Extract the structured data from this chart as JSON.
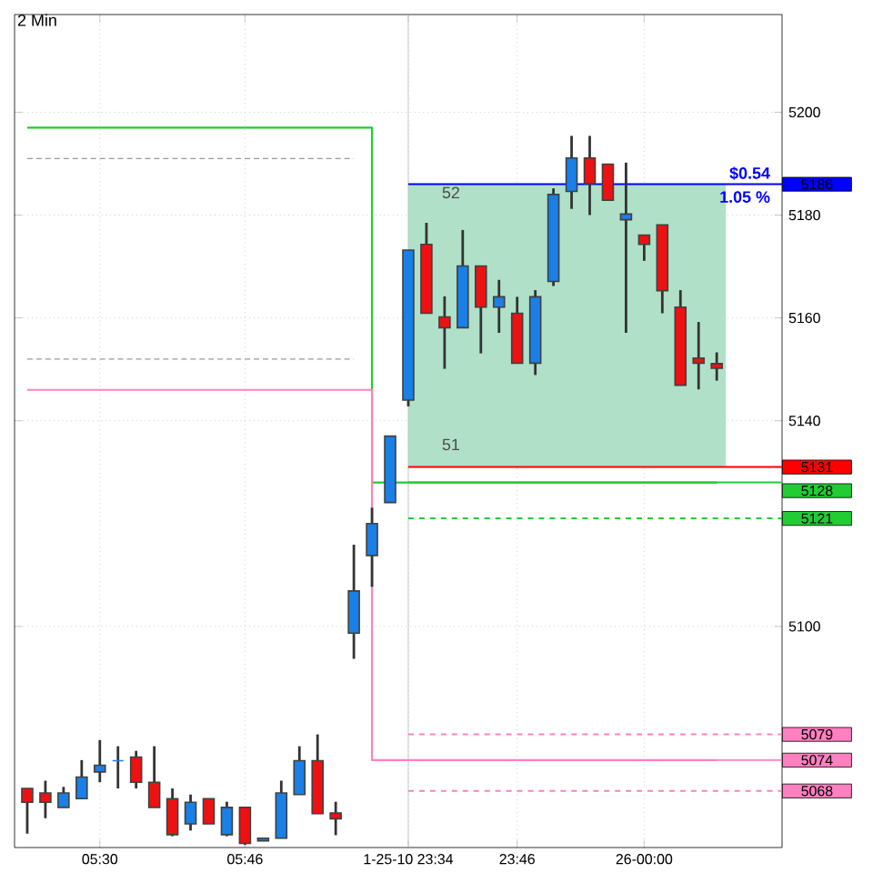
{
  "chart_data": {
    "type": "candlestick",
    "title": "2 Min",
    "categories": [
      null,
      null,
      null,
      null,
      "05:30",
      null,
      null,
      null,
      null,
      null,
      null,
      null,
      "05:46",
      null,
      null,
      null,
      null,
      null,
      null,
      null,
      null,
      "1-25-10 23:34",
      null,
      null,
      null,
      null,
      null,
      "23:46",
      null,
      null,
      null,
      null,
      null,
      null,
      "26-00:00",
      null,
      null,
      null,
      null
    ],
    "ohlc": [
      [
        5068.5,
        5068.5,
        5059.7,
        5065.8
      ],
      [
        5067.6,
        5070.0,
        5062.7,
        5065.8
      ],
      [
        5064.8,
        5068.8,
        5064.8,
        5067.6
      ],
      [
        5066.5,
        5074.0,
        5066.5,
        5070.7
      ],
      [
        5071.7,
        5077.9,
        5069.7,
        5073.0
      ],
      [
        5073.9,
        5076.7,
        5068.5,
        5073.9
      ],
      [
        5074.6,
        5075.8,
        5068.5,
        5069.7
      ],
      [
        5069.7,
        5076.7,
        5064.8,
        5064.8
      ],
      [
        5066.5,
        5068.5,
        5059.2,
        5059.5
      ],
      [
        5061.6,
        5067.3,
        5060.3,
        5065.8
      ],
      [
        5066.5,
        5066.5,
        5061.6,
        5061.6
      ],
      [
        5059.5,
        5065.9,
        5059.2,
        5064.8
      ],
      [
        5064.8,
        5064.8,
        5057.5,
        5057.8
      ],
      [
        5058.3,
        5058.8,
        5058.3,
        5058.8
      ],
      [
        5058.8,
        5070.0,
        5058.8,
        5067.6
      ],
      [
        5067.3,
        5076.7,
        5067.3,
        5073.9
      ],
      [
        5073.9,
        5079.0,
        5063.6,
        5063.6
      ],
      [
        5063.7,
        5065.9,
        5059.4,
        5062.6
      ],
      [
        5098.7,
        5115.9,
        5093.7,
        5106.9
      ],
      [
        5113.8,
        5123.1,
        5107.7,
        5120.0
      ],
      [
        5124.1,
        5137.0,
        5124.1,
        5137.0
      ],
      [
        5144.0,
        5173.2,
        5142.8,
        5173.2
      ],
      [
        5174.3,
        5178.5,
        5160.9,
        5160.9
      ],
      [
        5160.2,
        5164.2,
        5150.1,
        5158.1
      ],
      [
        5158.1,
        5177.1,
        5158.1,
        5170.1
      ],
      [
        5170.1,
        5170.1,
        5153.1,
        5162.1
      ],
      [
        5162.1,
        5167.4,
        5157.1,
        5164.1
      ],
      [
        5160.9,
        5164.1,
        5151.2,
        5151.2
      ],
      [
        5151.2,
        5165.4,
        5148.9,
        5164.1
      ],
      [
        5167.1,
        5185.2,
        5166.2,
        5184.0
      ],
      [
        5184.6,
        5195.4,
        5181.2,
        5191.1
      ],
      [
        5191.1,
        5195.4,
        5180.0,
        5186.1
      ],
      [
        5189.9,
        5189.9,
        5182.9,
        5182.9
      ],
      [
        5179.1,
        5190.2,
        5157.1,
        5180.2
      ],
      [
        5176.1,
        5176.1,
        5171.1,
        5174.3
      ],
      [
        5178.1,
        5178.1,
        5160.9,
        5165.3
      ],
      [
        5162.1,
        5165.4,
        5146.9,
        5146.9
      ],
      [
        5152.2,
        5159.2,
        5146.1,
        5151.2
      ],
      [
        5151.1,
        5153.3,
        5147.8,
        5150.2
      ]
    ],
    "colors": [
      "#ee1111",
      "#ee1111",
      "#1a7fe6",
      "#1a7fe6",
      "#1a7fe6",
      "#1a7fe6",
      "#ee1111",
      "#ee1111",
      "#ee1111",
      "#1a7fe6",
      "#ee1111",
      "#1a7fe6",
      "#ee1111",
      "#1a7fe6",
      "#1a7fe6",
      "#1a7fe6",
      "#ee1111",
      "#ee1111",
      "#1a7fe6",
      "#1a7fe6",
      "#1a7fe6",
      "#1a7fe6",
      "#ee1111",
      "#ee1111",
      "#1a7fe6",
      "#ee1111",
      "#1a7fe6",
      "#ee1111",
      "#1a7fe6",
      "#1a7fe6",
      "#1a7fe6",
      "#ee1111",
      "#ee1111",
      "#1a7fe6",
      "#ee1111",
      "#ee1111",
      "#ee1111",
      "#ee1111",
      "#ee1111"
    ],
    "series": [
      {
        "type": "step",
        "color": "#22cc33",
        "values": [
          5197,
          5197,
          5197,
          5197,
          5197,
          5197,
          5197,
          5197,
          5197,
          5197,
          5197,
          5197,
          5197,
          5197,
          5197,
          5197,
          5197,
          5197,
          5197,
          5128,
          5128,
          5128,
          5128,
          5128,
          5128,
          5128,
          5128,
          5128,
          5128,
          5128,
          5128,
          5128,
          5128,
          5128,
          5128,
          5128,
          5128,
          5128,
          5128
        ]
      },
      {
        "type": "step",
        "color": "#ff80c0",
        "values": [
          5146,
          5146,
          5146,
          5146,
          5146,
          5146,
          5146,
          5146,
          5146,
          5146,
          5146,
          5146,
          5146,
          5146,
          5146,
          5146,
          5146,
          5146,
          5146,
          5074,
          5074,
          5074,
          5074,
          5074,
          5074,
          5074,
          5074,
          5074,
          5074,
          5074,
          5074,
          5074,
          5074,
          5074,
          5074,
          5074,
          5074,
          5074,
          5074
        ]
      },
      {
        "type": "line",
        "color": "#999999",
        "line_style": "dashed",
        "values": [
          5191,
          5191,
          5191,
          5191,
          5191,
          5191,
          5191,
          5191,
          5191,
          5191,
          5191,
          5191,
          5191,
          5191,
          5191,
          5191,
          5191,
          5191,
          5191,
          null,
          null,
          null,
          null,
          null,
          null,
          null,
          null,
          null,
          null,
          null,
          null,
          null,
          null,
          null,
          null,
          null,
          null,
          null,
          null
        ]
      },
      {
        "type": "line",
        "color": "#999999",
        "line_style": "dashed",
        "values": [
          5152,
          5152,
          5152,
          5152,
          5152,
          5152,
          5152,
          5152,
          5152,
          5152,
          5152,
          5152,
          5152,
          5152,
          5152,
          5152,
          5152,
          5152,
          5152,
          null,
          null,
          null,
          null,
          null,
          null,
          null,
          null,
          null,
          null,
          null,
          null,
          null,
          null,
          null,
          null,
          null,
          null,
          null,
          null
        ]
      }
    ],
    "ylim": [
      5057,
      5219
    ],
    "yticks": [
      5100,
      5140,
      5160,
      5180,
      5200
    ],
    "grid": true,
    "ref_lines": [
      {
        "axis": "x",
        "value": "1-25-10 23:34",
        "color": "#bbbbbb"
      },
      {
        "axis": "y",
        "value": 5186,
        "label": "5186",
        "color": "#0000ff",
        "line_style": "solid"
      },
      {
        "axis": "y",
        "value": 5131,
        "label": "5131",
        "color": "#ff0000",
        "line_style": "solid"
      },
      {
        "axis": "y",
        "value": 5128,
        "label": "5128",
        "color": "#22cc33",
        "line_style": "solid"
      },
      {
        "axis": "y",
        "value": 5121,
        "label": "5121",
        "color": "#22cc33",
        "line_style": "dashed"
      },
      {
        "axis": "y",
        "value": 5079,
        "label": "5079",
        "color": "#ff80c0",
        "line_style": "dashed"
      },
      {
        "axis": "y",
        "value": 5074,
        "label": "5074",
        "color": "#ff80c0",
        "line_style": "solid"
      },
      {
        "axis": "y",
        "value": 5068,
        "label": "5068",
        "color": "#ff80c0",
        "line_style": "dashed"
      }
    ],
    "bands": [
      {
        "axis": "y",
        "from": 5131,
        "to": 5186,
        "color": "#b0e0c8"
      }
    ],
    "annotations": [
      {
        "text": "52",
        "x": "1-25-10 23:34",
        "y": 5182
      },
      {
        "text": "51",
        "x": "1-25-10 23:34",
        "y": 5133
      },
      "$0.54",
      "1.05 %"
    ]
  }
}
